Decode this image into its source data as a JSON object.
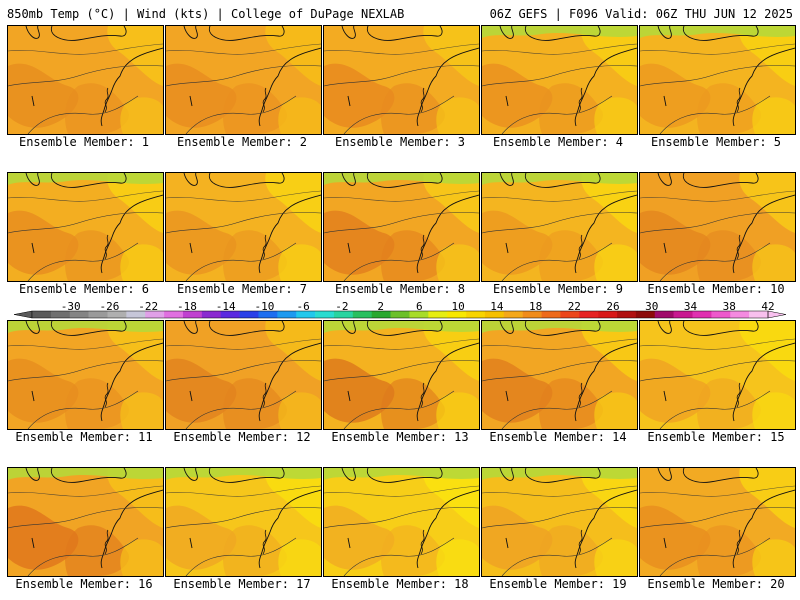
{
  "header": {
    "left": "850mb Temp (°C) | Wind (kts) | College of DuPage NEXLAB",
    "right": "06Z GEFS | F096 Valid: 06Z THU JUN 12 2025"
  },
  "panels": [
    {
      "member": 1,
      "label": "Ensemble Member: 1"
    },
    {
      "member": 2,
      "label": "Ensemble Member: 2"
    },
    {
      "member": 3,
      "label": "Ensemble Member: 3"
    },
    {
      "member": 4,
      "label": "Ensemble Member: 4"
    },
    {
      "member": 5,
      "label": "Ensemble Member: 5"
    },
    {
      "member": 6,
      "label": "Ensemble Member: 6"
    },
    {
      "member": 7,
      "label": "Ensemble Member: 7"
    },
    {
      "member": 8,
      "label": "Ensemble Member: 8"
    },
    {
      "member": 9,
      "label": "Ensemble Member: 9"
    },
    {
      "member": 10,
      "label": "Ensemble Member: 10"
    },
    {
      "member": 11,
      "label": "Ensemble Member: 11"
    },
    {
      "member": 12,
      "label": "Ensemble Member: 12"
    },
    {
      "member": 13,
      "label": "Ensemble Member: 13"
    },
    {
      "member": 14,
      "label": "Ensemble Member: 14"
    },
    {
      "member": 15,
      "label": "Ensemble Member: 15"
    },
    {
      "member": 16,
      "label": "Ensemble Member: 16"
    },
    {
      "member": 17,
      "label": "Ensemble Member: 17"
    },
    {
      "member": 18,
      "label": "Ensemble Member: 18"
    },
    {
      "member": 19,
      "label": "Ensemble Member: 19"
    },
    {
      "member": 20,
      "label": "Ensemble Member: 20"
    }
  ],
  "colorbar": {
    "tick_labels": [
      "-30",
      "-26",
      "-22",
      "-18",
      "-14",
      "-10",
      "-6",
      "-2",
      "2",
      "6",
      "10",
      "14",
      "18",
      "22",
      "26",
      "30",
      "34",
      "38",
      "42"
    ],
    "colors": [
      "#5a5a5a",
      "#6f6f6f",
      "#848484",
      "#9a9a9a",
      "#afafaf",
      "#c6c6d8",
      "#e0a0e8",
      "#e070e0",
      "#c040d0",
      "#8a2ad0",
      "#5a2ae0",
      "#2a40e8",
      "#1e6ef0",
      "#1e9af0",
      "#22c8ec",
      "#2adcd0",
      "#2ad4a0",
      "#2ac060",
      "#2aa830",
      "#6cc02a",
      "#a8dc2a",
      "#e6ee12",
      "#f8e800",
      "#f8d400",
      "#f6c000",
      "#f4a81a",
      "#f08c1a",
      "#ee6a1a",
      "#ec461a",
      "#e62222",
      "#d81818",
      "#b01010",
      "#8c0a0a",
      "#a00a6a",
      "#c81890",
      "#e030b0",
      "#ee58cc",
      "#f48ae0",
      "#f8c0ee"
    ]
  }
}
